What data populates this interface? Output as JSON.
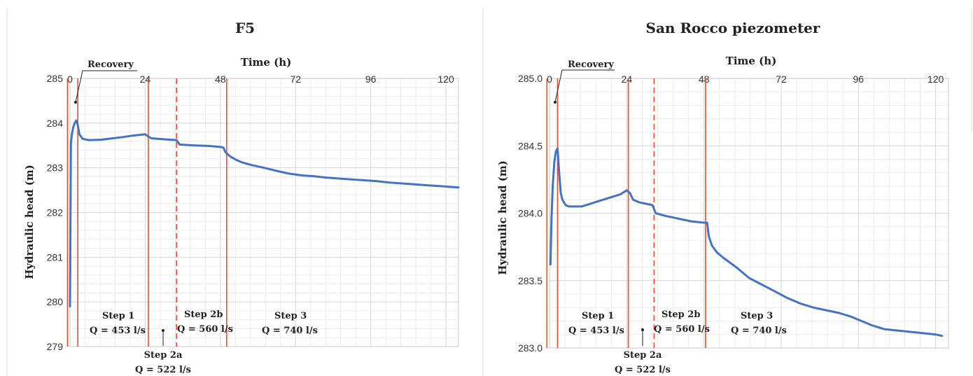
{
  "chart_data": [
    {
      "type": "line",
      "title": "F5",
      "xlabel": "Time (h)",
      "ylabel": "Hydraulic head (m)",
      "x_position": "top",
      "xlim": [
        0,
        124
      ],
      "ylim": [
        279,
        285
      ],
      "xticks": [
        "0",
        "24",
        "48",
        "72",
        "96",
        "120"
      ],
      "yticks": [
        "279",
        "280",
        "281",
        "282",
        "283",
        "284",
        "285"
      ],
      "grid": true,
      "color": "#4472c4",
      "series": [
        {
          "x": [
            0,
            0.3,
            0.6,
            1,
            1.5,
            2,
            2.5,
            3,
            4,
            6,
            10,
            16,
            20,
            24,
            25,
            26,
            28,
            32,
            34,
            35,
            40,
            44,
            48,
            49,
            49.5,
            51,
            53,
            55,
            58,
            62,
            66,
            70,
            74,
            78,
            82,
            86,
            90,
            94,
            98,
            102,
            106,
            110,
            114,
            118,
            122,
            124
          ],
          "y": [
            279.9,
            283.55,
            283.75,
            283.9,
            284.0,
            284.06,
            283.95,
            283.75,
            283.65,
            283.62,
            283.63,
            283.68,
            283.72,
            283.75,
            283.7,
            283.66,
            283.65,
            283.63,
            283.62,
            283.52,
            283.5,
            283.49,
            283.47,
            283.45,
            283.36,
            283.26,
            283.18,
            283.12,
            283.06,
            283.0,
            282.93,
            282.87,
            282.83,
            282.81,
            282.78,
            282.76,
            282.74,
            282.72,
            282.7,
            282.67,
            282.65,
            282.63,
            282.61,
            282.59,
            282.57,
            282.56
          ]
        }
      ],
      "vlines": [
        {
          "x": -0.8,
          "style": "solid"
        },
        {
          "x": 2.5,
          "style": "solid"
        },
        {
          "x": 25,
          "style": "solid"
        },
        {
          "x": 34,
          "style": "dashed"
        },
        {
          "x": 50,
          "style": "solid"
        }
      ],
      "annotations": {
        "recovery": "Recovery",
        "step1": "Step 1",
        "step1_q": "Q = 453 l/s",
        "step2a": "Step 2a",
        "step2a_q": "Q = 522 l/s",
        "step2b": "Step 2b",
        "step2b_q": "Q = 560 l/s",
        "step3": "Step 3",
        "step3_q": "Q = 740 l/s"
      }
    },
    {
      "type": "line",
      "title": "San Rocco piezometer",
      "xlabel": "Time (h)",
      "ylabel": "Hydraulic head (m)",
      "x_position": "top",
      "xlim": [
        0,
        124
      ],
      "ylim": [
        283.0,
        285.0
      ],
      "xticks": [
        "0",
        "24",
        "48",
        "72",
        "96",
        "120"
      ],
      "yticks": [
        "283.0",
        "283.5",
        "284.0",
        "284.5",
        "285.0"
      ],
      "grid": true,
      "color": "#4472c4",
      "series": [
        {
          "x": [
            0.3,
            0.6,
            1,
            1.5,
            2,
            2.5,
            3,
            3.5,
            4,
            5,
            6,
            8,
            10,
            14,
            18,
            22,
            24,
            25,
            26,
            28,
            32,
            33,
            36,
            40,
            44,
            48,
            49,
            49.5,
            50.5,
            52,
            54,
            58,
            62,
            66,
            70,
            74,
            78,
            82,
            86,
            90,
            94,
            96,
            98,
            100,
            104,
            108,
            112,
            116,
            120,
            122
          ],
          "y": [
            283.62,
            283.95,
            284.2,
            284.38,
            284.46,
            284.48,
            284.3,
            284.15,
            284.1,
            284.06,
            284.05,
            284.05,
            284.05,
            284.08,
            284.11,
            284.14,
            284.17,
            284.15,
            284.1,
            284.08,
            284.06,
            284.0,
            283.98,
            283.96,
            283.94,
            283.93,
            283.93,
            283.83,
            283.76,
            283.71,
            283.67,
            283.6,
            283.52,
            283.47,
            283.42,
            283.37,
            283.33,
            283.3,
            283.28,
            283.26,
            283.23,
            283.21,
            283.19,
            283.17,
            283.14,
            283.13,
            283.12,
            283.11,
            283.1,
            283.09
          ]
        }
      ],
      "vlines": [
        {
          "x": -0.8,
          "style": "solid"
        },
        {
          "x": 2.5,
          "style": "solid"
        },
        {
          "x": 24.5,
          "style": "solid"
        },
        {
          "x": 32.5,
          "style": "dashed"
        },
        {
          "x": 48.5,
          "style": "solid"
        }
      ],
      "annotations": {
        "recovery": "Recovery",
        "step1": "Step 1",
        "step1_q": "Q = 453 l/s",
        "step2a": "Step 2a",
        "step2a_q": "Q = 522 l/s",
        "step2b": "Step 2b",
        "step2b_q": "Q = 560 l/s",
        "step3": "Step 3",
        "step3_q": "Q = 740 l/s"
      }
    }
  ]
}
